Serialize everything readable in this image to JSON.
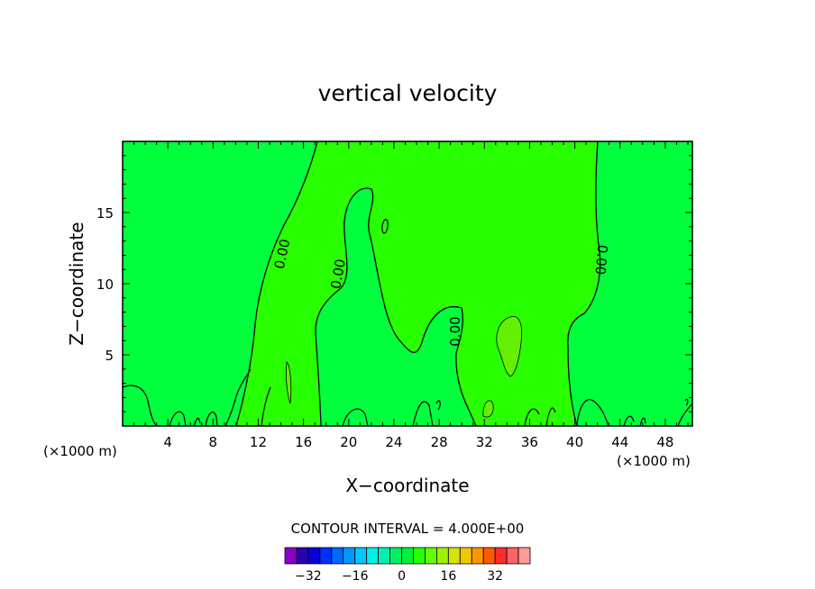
{
  "chart_data": {
    "type": "contour",
    "title": "vertical velocity",
    "xlabel": "X−coordinate",
    "ylabel": "Z−coordinate",
    "x_unit_label_left": "(×1000 m)",
    "x_unit_label_right": "(×1000 m)",
    "xlim": [
      0,
      50.4
    ],
    "ylim": [
      0,
      20
    ],
    "x_ticks": [
      4,
      8,
      12,
      16,
      20,
      24,
      28,
      32,
      36,
      40,
      44,
      48
    ],
    "y_ticks": [
      5,
      10,
      15
    ],
    "contour_interval_label": "CONTOUR INTERVAL = 4.000E+00",
    "contour_label_value": "0.00",
    "colorbar": {
      "levels": [
        -36,
        -32,
        -28,
        -24,
        -20,
        -16,
        -12,
        -8,
        -4,
        0,
        4,
        8,
        12,
        16,
        20,
        24,
        28,
        32,
        36
      ],
      "colors": [
        "#8b00c8",
        "#2a00aa",
        "#0a00d6",
        "#0030ff",
        "#0068ff",
        "#0098ff",
        "#00c8ff",
        "#00f0e6",
        "#00f0b4",
        "#00f064",
        "#00f03c",
        "#28ff00",
        "#64ff00",
        "#a0f000",
        "#d2e600",
        "#f0c800",
        "#ff9600",
        "#ff5a00",
        "#ff2d2d",
        "#ff6464",
        "#ff9b9b"
      ],
      "tick_labels": [
        "−32",
        "−16",
        "0",
        "16",
        "32"
      ],
      "tick_values": [
        -32,
        -16,
        0,
        16,
        32
      ]
    },
    "field_colors": {
      "negative_weak": "#00ff3c",
      "positive_weak": "#28ff00",
      "positive_moderate": "#64f000"
    },
    "regions": [
      {
        "name": "updraft-plume-left",
        "sign": "positive",
        "x_range": [
          11,
          21.5
        ],
        "z_range": [
          0.3,
          20
        ]
      },
      {
        "name": "updraft-plume-center",
        "sign": "positive",
        "x_range": [
          17,
          42
        ],
        "z_range": [
          0.3,
          20
        ]
      },
      {
        "name": "downdraft-column-center",
        "sign": "negative",
        "x_range": [
          16,
          29
        ],
        "z_range": [
          5.3,
          16.7
        ]
      },
      {
        "name": "updraft-core",
        "sign": "positive",
        "x_range": [
          32.5,
          35
        ],
        "z_range": [
          3.5,
          7.9
        ]
      },
      {
        "name": "near-surface-cells",
        "sign": "mixed",
        "x_range": [
          0,
          50.4
        ],
        "z_range": [
          0,
          2.8
        ]
      }
    ]
  }
}
